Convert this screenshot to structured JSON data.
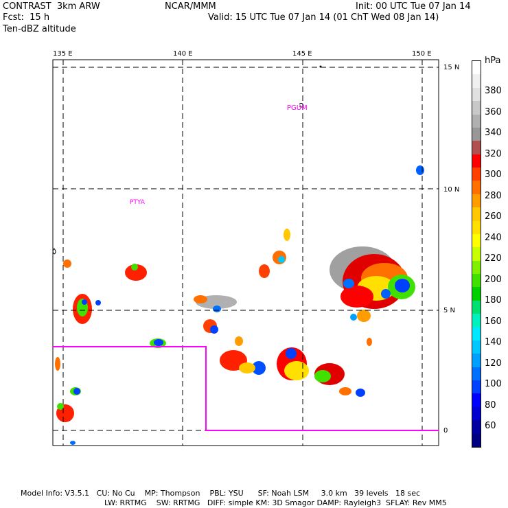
{
  "header": {
    "left_line1": "CONTRAST  3km ARW",
    "center_line1": "NCAR/MMM",
    "right_line1": "Init: 00 UTC Tue 07 Jan 14",
    "left_line2": "Fcst:  15 h",
    "right_line2": "Valid: 15 UTC Tue 07 Jan 14 (01 ChT Wed 08 Jan 14)",
    "left_line3": "Ten-dBZ altitude"
  },
  "map": {
    "lon_labels": [
      "135 E",
      "140 E",
      "145 E",
      "150 E"
    ],
    "lat_labels": [
      "15 N",
      "10 N",
      "5 N",
      "0"
    ],
    "station_labels": [
      "PGUM",
      "PTYA"
    ],
    "border_color": "#ff00ff"
  },
  "colorbar": {
    "unit": "hPa",
    "tick_labels": [
      "380",
      "360",
      "340",
      "320",
      "300",
      "280",
      "260",
      "240",
      "220",
      "200",
      "180",
      "160",
      "140",
      "120",
      "100",
      "80",
      "60"
    ],
    "colors": [
      "#ffffff",
      "#f0f0f0",
      "#e0e0e0",
      "#c8c8c8",
      "#b0b0b0",
      "#989898",
      "#b05050",
      "#ff0000",
      "#ff4000",
      "#ff7000",
      "#ff9c00",
      "#ffc800",
      "#ffe000",
      "#ffff00",
      "#c8ff00",
      "#80f000",
      "#40e000",
      "#00d000",
      "#00e070",
      "#00f0c0",
      "#00e8ff",
      "#00c8ff",
      "#00a0ff",
      "#0070ff",
      "#0040ff",
      "#0000ff",
      "#0000d0",
      "#0000a0",
      "#000080"
    ]
  },
  "footer": {
    "line1": "Model Info: V3.5.1   CU: No Cu    MP: Thompson    PBL: YSU      SF: Noah LSM     3.0 km   39 levels   18 sec",
    "line2": "LW: RRTMG    SW: RRTMG   DIFF: simple KM: 3D Smagor DAMP: Rayleigh3  SFLAY: Rev MM5"
  }
}
